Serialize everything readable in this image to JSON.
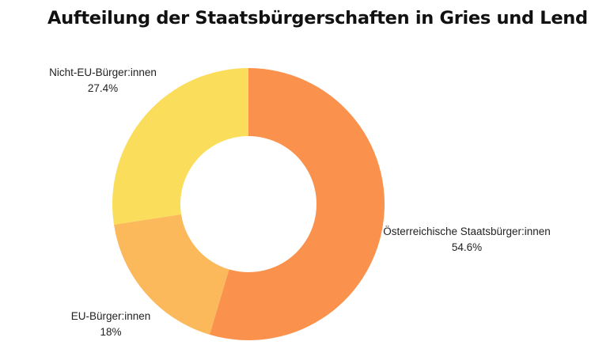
{
  "chart_data": {
    "type": "pie",
    "variant": "donut",
    "title": "Aufteilung der Staatsbürgerschaften in Gries und Lend",
    "start": "top",
    "direction": "clockwise",
    "legend": "none",
    "slices": [
      {
        "label": "Österreichische Staatsbürger:innen",
        "value": 54.6,
        "value_label": "54.6%",
        "color": "#fa914c"
      },
      {
        "label": "EU-Bürger:innen",
        "value": 18,
        "value_label": "18%",
        "color": "#fcb95c"
      },
      {
        "label": "Nicht-EU-Bürger:innen",
        "value": 27.4,
        "value_label": "27.4%",
        "color": "#fbdd5c"
      }
    ]
  }
}
